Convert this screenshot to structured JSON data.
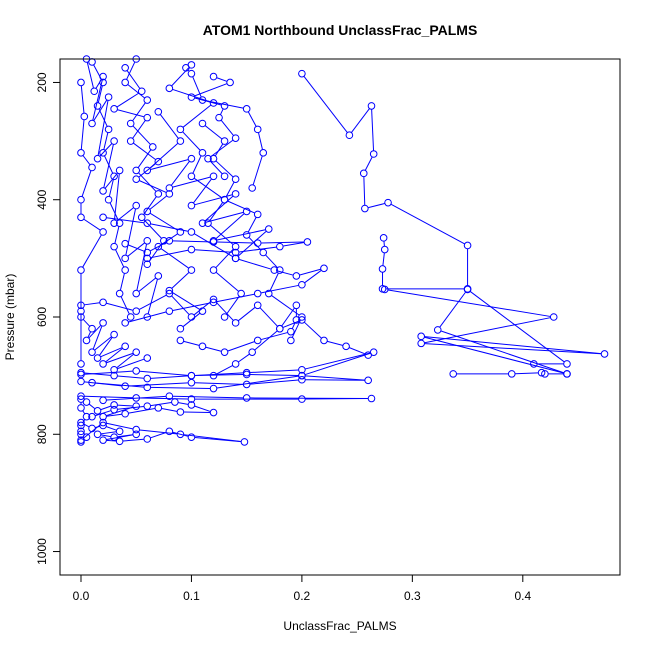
{
  "chart_data": {
    "type": "scatter",
    "title": "ATOM1 Northbound UnclassFrac_PALMS",
    "xlabel": "UnclassFrac_PALMS",
    "ylabel": "Pressure (mbar)",
    "xlim": [
      -0.019,
      0.488
    ],
    "ylim": [
      1040,
      160
    ],
    "y_reversed": true,
    "x_ticks": [
      {
        "value": 0.0,
        "label": "0.0"
      },
      {
        "value": 0.1,
        "label": "0.1"
      },
      {
        "value": 0.2,
        "label": "0.2"
      },
      {
        "value": 0.3,
        "label": "0.3"
      },
      {
        "value": 0.4,
        "label": "0.4"
      }
    ],
    "y_ticks": [
      {
        "value": 200,
        "label": "200"
      },
      {
        "value": 400,
        "label": "400"
      },
      {
        "value": 600,
        "label": "600"
      },
      {
        "value": 800,
        "label": "800"
      },
      {
        "value": 1000,
        "label": "1000"
      }
    ],
    "grid": false,
    "legend": "none",
    "series_color": "#0000ff",
    "marker": "open-circle",
    "connected": true,
    "series": [
      {
        "x": [
          0.0,
          0.003,
          0.0,
          0.01,
          0.0,
          0.0,
          0.02,
          0.0,
          0.0,
          0.0
        ],
        "y": [
          200,
          258,
          320,
          345,
          400,
          430,
          455,
          520,
          590,
          680
        ]
      },
      {
        "x": [
          0.005,
          0.012,
          0.02,
          0.01,
          0.025,
          0.015,
          0.03,
          0.02,
          0.035,
          0.03,
          0.05,
          0.04,
          0.06,
          0.05,
          0.07,
          0.06
        ],
        "y": [
          160,
          215,
          190,
          270,
          225,
          330,
          300,
          385,
          350,
          440,
          410,
          500,
          470,
          560,
          530,
          600
        ]
      },
      {
        "x": [
          0.04,
          0.055,
          0.03,
          0.06,
          0.045,
          0.07,
          0.05,
          0.08,
          0.06,
          0.09,
          0.07,
          0.1,
          0.08,
          0.11,
          0.09
        ],
        "y": [
          175,
          215,
          245,
          260,
          300,
          335,
          365,
          390,
          420,
          455,
          480,
          520,
          555,
          590,
          620
        ]
      },
      {
        "x": [
          0.1,
          0.08,
          0.12,
          0.09,
          0.11,
          0.1,
          0.13,
          0.115,
          0.14,
          0.12,
          0.145,
          0.13
        ],
        "y": [
          170,
          210,
          235,
          280,
          320,
          360,
          400,
          440,
          480,
          520,
          560,
          600
        ]
      },
      {
        "x": [
          0.11,
          0.13,
          0.12,
          0.14,
          0.13,
          0.16,
          0.15,
          0.165,
          0.18,
          0.17,
          0.2,
          0.19
        ],
        "y": [
          270,
          300,
          330,
          365,
          400,
          425,
          460,
          490,
          520,
          560,
          600,
          640
        ]
      },
      {
        "x": [
          0.095,
          0.1,
          0.11,
          0.15,
          0.16,
          0.165,
          0.155
        ],
        "y": [
          175,
          185,
          230,
          245,
          280,
          320,
          380
        ]
      },
      {
        "x": [
          0.2,
          0.243,
          0.263,
          0.265,
          0.256,
          0.257,
          0.278,
          0.35,
          0.35,
          0.273,
          0.273,
          0.275,
          0.274
        ],
        "y": [
          185,
          290,
          240,
          322,
          355,
          415,
          405,
          478,
          552,
          552,
          518,
          485,
          465
        ]
      },
      {
        "x": [
          0.275,
          0.428,
          0.308,
          0.474,
          0.308,
          0.44,
          0.323,
          0.35,
          0.44,
          0.41
        ],
        "y": [
          553,
          600,
          645,
          663,
          633,
          697,
          622,
          553,
          680,
          680
        ]
      },
      {
        "x": [
          0.337,
          0.39,
          0.417,
          0.42,
          0.44
        ],
        "y": [
          697,
          697,
          695,
          697,
          697
        ]
      },
      {
        "x": [
          0.0,
          0.03,
          0.06,
          0.1,
          0.15,
          0.2,
          0.265,
          0.2,
          0.15,
          0.1,
          0.05,
          0.0
        ],
        "y": [
          695,
          700,
          705,
          700,
          698,
          700,
          660,
          690,
          695,
          700,
          692,
          698
        ]
      },
      {
        "x": [
          0.0,
          0.04,
          0.1,
          0.15,
          0.2,
          0.26,
          0.2,
          0.12,
          0.06,
          0.01
        ],
        "y": [
          710,
          718,
          712,
          715,
          707,
          708,
          700,
          722,
          720,
          712
        ]
      },
      {
        "x": [
          0.0,
          0.05,
          0.1,
          0.2,
          0.263,
          0.15,
          0.08,
          0.02
        ],
        "y": [
          735,
          738,
          740,
          740,
          739,
          738,
          735,
          742
        ]
      },
      {
        "x": [
          0.005,
          0.015,
          0.03,
          0.05,
          0.02,
          0.04,
          0.07,
          0.09,
          0.12,
          0.1,
          0.085,
          0.06,
          0.03,
          0.01
        ],
        "y": [
          745,
          760,
          750,
          752,
          770,
          765,
          755,
          762,
          763,
          750,
          745,
          752,
          758,
          770
        ]
      },
      {
        "x": [
          0.0,
          0.01,
          0.02,
          0.035,
          0.015,
          0.03,
          0.05,
          0.02,
          0.035,
          0.06,
          0.08,
          0.1,
          0.148,
          0.09,
          0.05,
          0.02,
          0.0
        ],
        "y": [
          780,
          790,
          785,
          795,
          800,
          805,
          800,
          810,
          812,
          808,
          795,
          805,
          813,
          800,
          792,
          780,
          810
        ]
      },
      {
        "x": [
          0.0,
          0.02,
          0.05,
          0.08,
          0.1,
          0.12,
          0.14,
          0.16,
          0.18,
          0.2,
          0.22,
          0.24,
          0.26
        ],
        "y": [
          580,
          575,
          590,
          560,
          600,
          570,
          610,
          580,
          620,
          605,
          640,
          650,
          665
        ]
      },
      {
        "x": [
          0.04,
          0.06,
          0.08,
          0.12,
          0.16,
          0.205,
          0.18,
          0.14,
          0.1,
          0.06
        ],
        "y": [
          475,
          490,
          470,
          472,
          474,
          472,
          480,
          490,
          485,
          500
        ]
      },
      {
        "x": [
          0.02,
          0.06,
          0.1,
          0.14,
          0.175,
          0.195,
          0.22,
          0.2,
          0.16,
          0.12,
          0.08,
          0.04
        ],
        "y": [
          430,
          440,
          455,
          500,
          520,
          530,
          517,
          545,
          560,
          575,
          590,
          610
        ]
      },
      {
        "x": [
          0.09,
          0.11,
          0.13,
          0.16,
          0.19,
          0.195,
          0.195,
          0.18,
          0.155,
          0.14,
          0.12
        ],
        "y": [
          640,
          650,
          660,
          640,
          625,
          605,
          580,
          620,
          660,
          680,
          700
        ]
      },
      {
        "x": [
          0.0,
          0.01,
          0.005,
          0.02,
          0.01,
          0.03,
          0.015,
          0.04,
          0.02,
          0.05,
          0.03,
          0.06
        ],
        "y": [
          600,
          620,
          640,
          610,
          660,
          630,
          670,
          650,
          680,
          660,
          690,
          670
        ]
      },
      {
        "x": [
          0.07,
          0.09,
          0.06,
          0.1,
          0.08,
          0.12,
          0.1,
          0.14,
          0.11,
          0.15,
          0.12,
          0.17,
          0.14
        ],
        "y": [
          250,
          300,
          350,
          330,
          380,
          360,
          410,
          390,
          440,
          420,
          470,
          450,
          500
        ]
      },
      {
        "x": [
          0.01,
          0.02,
          0.015,
          0.025,
          0.02,
          0.03,
          0.025,
          0.035,
          0.03,
          0.04,
          0.035,
          0.045
        ],
        "y": [
          165,
          200,
          240,
          280,
          320,
          360,
          400,
          440,
          480,
          520,
          560,
          600
        ]
      },
      {
        "x": [
          0.05,
          0.04,
          0.06,
          0.045,
          0.065,
          0.05,
          0.07,
          0.055,
          0.075,
          0.06
        ],
        "y": [
          160,
          200,
          230,
          270,
          310,
          350,
          390,
          430,
          470,
          510
        ]
      },
      {
        "x": [
          0.12,
          0.135,
          0.1,
          0.13,
          0.125,
          0.14,
          0.115,
          0.13
        ],
        "y": [
          190,
          200,
          225,
          240,
          260,
          295,
          330,
          360
        ]
      },
      {
        "x": [
          0.0,
          0.0,
          0.005,
          0.0,
          0.0,
          0.0,
          0.005,
          0.0
        ],
        "y": [
          740,
          755,
          770,
          785,
          795,
          800,
          805,
          813
        ]
      }
    ]
  }
}
